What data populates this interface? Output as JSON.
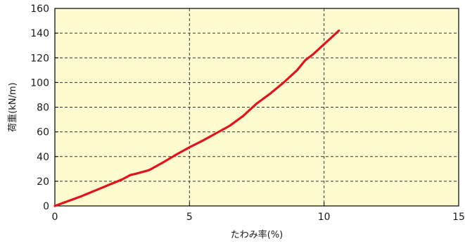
{
  "chart_data": {
    "type": "line",
    "title": "",
    "xlabel": "たわみ率(%)",
    "ylabel": "荷重(kN/m)",
    "xlim": [
      0,
      15
    ],
    "ylim": [
      0,
      160
    ],
    "x_ticks": [
      0,
      5,
      10,
      15
    ],
    "y_ticks": [
      0,
      20,
      40,
      60,
      80,
      100,
      120,
      140,
      160
    ],
    "x_tick_labels": [
      "0",
      "5",
      "10",
      "15"
    ],
    "y_tick_labels": [
      "0",
      "20",
      "40",
      "60",
      "80",
      "100",
      "120",
      "140",
      "160"
    ],
    "grid": true,
    "legend": "none",
    "colors": {
      "plot_background": "#FFFBD0",
      "series": "#E0141E",
      "grid": "#333333",
      "axis": "#000000"
    },
    "series": [
      {
        "x": [
          0,
          0.5,
          1.0,
          1.5,
          2.0,
          2.5,
          2.8,
          3.0,
          3.5,
          4.0,
          4.5,
          5.0,
          5.5,
          6.0,
          6.5,
          7.0,
          7.5,
          8.0,
          8.5,
          9.0,
          9.3,
          9.6,
          10.0,
          10.3,
          10.55
        ],
        "y": [
          0,
          4,
          8,
          12.5,
          17,
          21.5,
          25,
          26,
          29,
          35,
          41.5,
          47.5,
          53,
          59,
          65,
          73,
          83,
          91,
          100,
          110,
          118,
          123,
          131,
          137,
          142
        ]
      }
    ]
  }
}
